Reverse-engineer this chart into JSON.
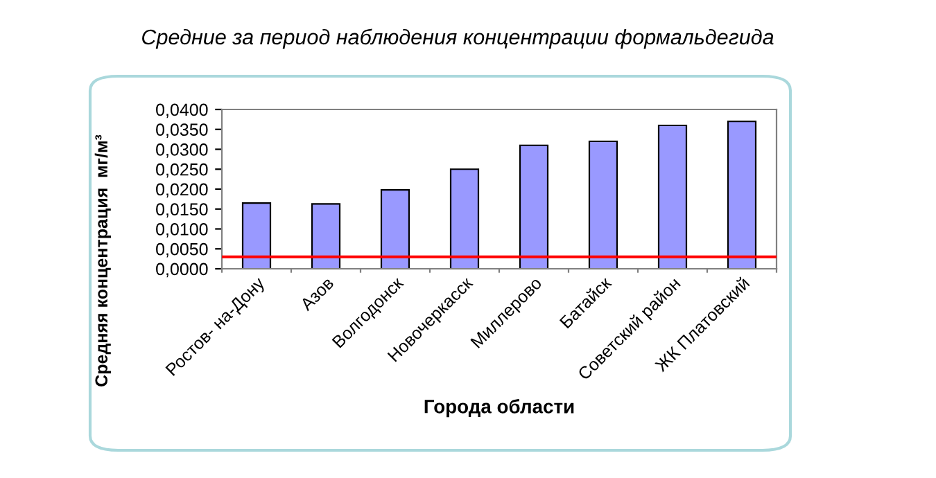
{
  "chart_data": {
    "type": "bar",
    "title": "Средние за период наблюдения концентрации формальдегида",
    "xlabel": "Города области",
    "ylabel": "Средняя концентрация  мг/м³",
    "categories": [
      "Ростов- на-Дону",
      "Азов",
      "Волгодонск",
      "Новочеркасск",
      "Миллерово",
      "Батайск",
      "Советский район",
      "ЖК Платовский"
    ],
    "values": [
      0.0165,
      0.0163,
      0.0198,
      0.025,
      0.031,
      0.032,
      0.036,
      0.037
    ],
    "color": "#9999ff",
    "ylim": [
      0,
      0.04
    ],
    "yticks": [
      {
        "value": 0,
        "label": "0,0000"
      },
      {
        "value": 0.005,
        "label": "0,0050"
      },
      {
        "value": 0.01,
        "label": "0,0100"
      },
      {
        "value": 0.015,
        "label": "0,0150"
      },
      {
        "value": 0.02,
        "label": "0,0200"
      },
      {
        "value": 0.025,
        "label": "0,0250"
      },
      {
        "value": 0.03,
        "label": "0,0300"
      },
      {
        "value": 0.035,
        "label": "0,0350"
      },
      {
        "value": 0.04,
        "label": "0,0400"
      }
    ],
    "ref_lines": [
      {
        "axis": "y",
        "value": 0.003,
        "color": "#ff0000"
      }
    ],
    "grid": false,
    "legend": false
  }
}
